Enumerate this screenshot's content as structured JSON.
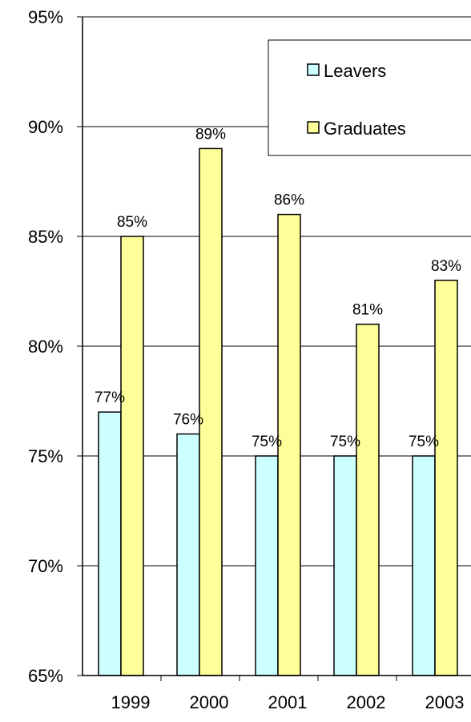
{
  "chart_data": {
    "type": "bar",
    "title": "",
    "xlabel": "",
    "ylabel": "",
    "categories": [
      "1999",
      "2000",
      "2001",
      "2002",
      "2003"
    ],
    "series": [
      {
        "name": "Leavers",
        "values": [
          77,
          76,
          75,
          75,
          75
        ],
        "labels": [
          "77%",
          "76%",
          "75%",
          "75%",
          "75%"
        ],
        "color": "#ccffff"
      },
      {
        "name": "Graduates",
        "values": [
          85,
          89,
          86,
          81,
          83
        ],
        "labels": [
          "85%",
          "89%",
          "86%",
          "81%",
          "83%"
        ],
        "color": "#ffff99"
      }
    ],
    "ylim": [
      65,
      95
    ],
    "yticks": [
      65,
      70,
      75,
      80,
      85,
      90,
      95
    ],
    "ytick_labels": [
      "65%",
      "70%",
      "75%",
      "80%",
      "85%",
      "90%",
      "95%"
    ],
    "grid": true,
    "legend": "top-right"
  }
}
